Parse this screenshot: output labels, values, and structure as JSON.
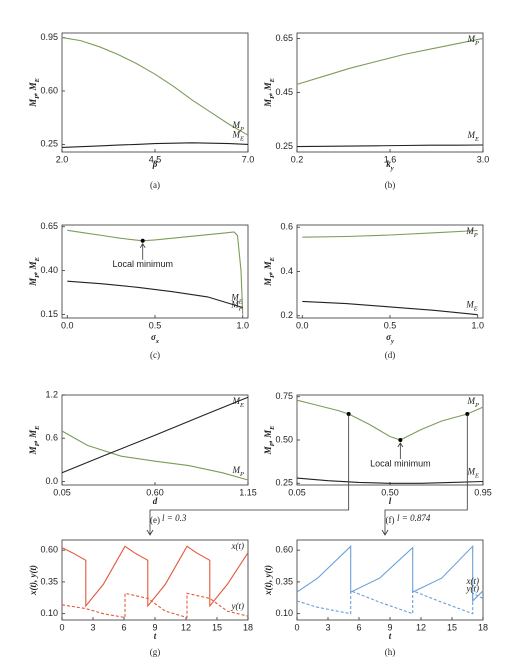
{
  "chart_data": [
    {
      "type": "line",
      "caption": "(a)",
      "xlabel": "β",
      "ylabel": "M_P, M_E",
      "xlim": [
        2,
        7
      ],
      "xticks": [
        {
          "value": 2,
          "label": "2.0"
        },
        4.5,
        {
          "value": 7,
          "label": "7.0"
        }
      ],
      "ylim": [
        0.2,
        0.98
      ],
      "yticks": [
        0.25,
        {
          "value": 0.6,
          "label": "0.60"
        },
        0.95
      ],
      "series": [
        {
          "name": "M_P",
          "color": "#7d9c5b",
          "x": [
            2,
            2.5,
            3,
            3.5,
            4,
            4.5,
            5,
            5.5,
            6,
            6.5,
            7
          ],
          "values": [
            0.95,
            0.93,
            0.89,
            0.84,
            0.78,
            0.71,
            0.63,
            0.54,
            0.46,
            0.38,
            0.31
          ]
        },
        {
          "name": "M_E",
          "color": "#222222",
          "x": [
            2,
            2.5,
            3,
            3.5,
            4,
            4.5,
            5,
            5.5,
            6,
            6.5,
            7
          ],
          "values": [
            0.23,
            0.235,
            0.24,
            0.245,
            0.25,
            0.255,
            0.258,
            0.26,
            0.258,
            0.255,
            0.25
          ]
        }
      ]
    },
    {
      "type": "line",
      "caption": "(b)",
      "xlabel": "k_y",
      "ylabel": "M_P, M_E",
      "xlim": [
        0.2,
        3
      ],
      "xticks": [
        0.2,
        1.6,
        {
          "value": 3,
          "label": "3.0"
        }
      ],
      "ylim": [
        0.23,
        0.67
      ],
      "yticks": [
        0.25,
        0.45,
        0.65
      ],
      "series": [
        {
          "name": "M_P",
          "color": "#7d9c5b",
          "x": [
            0.2,
            0.6,
            1,
            1.4,
            1.8,
            2.2,
            2.6,
            3
          ],
          "values": [
            0.48,
            0.51,
            0.54,
            0.565,
            0.59,
            0.61,
            0.63,
            0.65
          ]
        },
        {
          "name": "M_E",
          "color": "#222222",
          "x": [
            0.2,
            0.6,
            1,
            1.4,
            1.8,
            2.2,
            2.6,
            3
          ],
          "values": [
            0.25,
            0.251,
            0.252,
            0.253,
            0.254,
            0.255,
            0.255,
            0.256
          ]
        }
      ]
    },
    {
      "type": "line",
      "caption": "(c)",
      "xlabel": "σ_x",
      "ylabel": "M_P, M_E",
      "xlim": [
        -0.03,
        1.03
      ],
      "xticks": [
        {
          "value": 0,
          "label": "0.0"
        },
        0.5,
        {
          "value": 1,
          "label": "1.0"
        }
      ],
      "ylim": [
        0.13,
        0.66
      ],
      "yticks": [
        0.15,
        {
          "value": 0.4,
          "label": "0.40"
        },
        0.65
      ],
      "series": [
        {
          "name": "M_P",
          "color": "#7d9c5b",
          "x": [
            0,
            0.1,
            0.2,
            0.3,
            0.43,
            0.5,
            0.6,
            0.7,
            0.8,
            0.9,
            0.95,
            0.97,
            0.99,
            1
          ],
          "values": [
            0.63,
            0.615,
            0.6,
            0.585,
            0.57,
            0.575,
            0.585,
            0.595,
            0.605,
            0.615,
            0.62,
            0.6,
            0.4,
            0.15
          ]
        },
        {
          "name": "M_E",
          "color": "#222222",
          "x": [
            0,
            0.2,
            0.4,
            0.6,
            0.8,
            1
          ],
          "values": [
            0.34,
            0.325,
            0.305,
            0.28,
            0.25,
            0.19
          ]
        }
      ],
      "points": [
        {
          "x": 0.43,
          "y": 0.57,
          "label": "Local minimum"
        }
      ]
    },
    {
      "type": "line",
      "caption": "(d)",
      "xlabel": "σ_y",
      "ylabel": "M_P, M_E",
      "xlim": [
        -0.03,
        1.03
      ],
      "xticks": [
        {
          "value": 0,
          "label": "0.0"
        },
        0.5,
        {
          "value": 1,
          "label": "1.0"
        }
      ],
      "ylim": [
        0.19,
        0.61
      ],
      "yticks": [
        0.2,
        0.4,
        0.6
      ],
      "series": [
        {
          "name": "M_P",
          "color": "#7d9c5b",
          "x": [
            0,
            0.25,
            0.5,
            0.75,
            1
          ],
          "values": [
            0.555,
            0.558,
            0.565,
            0.575,
            0.585
          ]
        },
        {
          "name": "M_E",
          "color": "#222222",
          "x": [
            0,
            0.25,
            0.5,
            0.75,
            1
          ],
          "values": [
            0.265,
            0.255,
            0.24,
            0.225,
            0.205
          ]
        }
      ]
    },
    {
      "type": "line",
      "caption": "(e)",
      "xlabel": "d",
      "ylabel": "M_P, M_E",
      "xlim": [
        0.05,
        1.15
      ],
      "xticks": [
        0.05,
        {
          "value": 0.6,
          "label": "0.60"
        },
        1.15
      ],
      "ylim": [
        -0.05,
        1.2
      ],
      "yticks": [
        {
          "value": 0,
          "label": "0.0"
        },
        0.6,
        1.2
      ],
      "series": [
        {
          "name": "M_P",
          "color": "#7d9c5b",
          "x": [
            0.05,
            0.2,
            0.4,
            0.6,
            0.8,
            1,
            1.15
          ],
          "values": [
            0.7,
            0.5,
            0.35,
            0.28,
            0.22,
            0.12,
            0.02
          ]
        },
        {
          "name": "M_E",
          "color": "#222222",
          "x": [
            0.05,
            0.3,
            0.6,
            0.9,
            1.15
          ],
          "values": [
            0.12,
            0.36,
            0.64,
            0.93,
            1.17
          ]
        }
      ]
    },
    {
      "type": "line",
      "caption": "(f)",
      "xlabel": "l",
      "ylabel": "M_P, M_E",
      "xlim": [
        0.05,
        0.95
      ],
      "xticks": [
        0.05,
        {
          "value": 0.5,
          "label": "0.50"
        },
        0.95
      ],
      "ylim": [
        0.24,
        0.76
      ],
      "yticks": [
        0.25,
        {
          "value": 0.5,
          "label": "0.50"
        },
        0.75
      ],
      "series": [
        {
          "name": "M_P",
          "color": "#7d9c5b",
          "x": [
            0.05,
            0.15,
            0.25,
            0.3,
            0.4,
            0.5,
            0.55,
            0.65,
            0.75,
            0.874,
            0.95
          ],
          "values": [
            0.73,
            0.7,
            0.67,
            0.65,
            0.59,
            0.52,
            0.5,
            0.56,
            0.61,
            0.65,
            0.69
          ]
        },
        {
          "name": "M_E",
          "color": "#222222",
          "x": [
            0.05,
            0.2,
            0.35,
            0.5,
            0.65,
            0.8,
            0.95
          ],
          "values": [
            0.28,
            0.265,
            0.255,
            0.25,
            0.25,
            0.255,
            0.26
          ]
        }
      ],
      "points": [
        {
          "x": 0.55,
          "y": 0.5,
          "label": "Local minimum"
        },
        {
          "x": 0.3,
          "y": 0.65,
          "label": "l = 0.3",
          "drop": true
        },
        {
          "x": 0.874,
          "y": 0.65,
          "label": "l = 0.874",
          "drop": true
        }
      ]
    },
    {
      "type": "line",
      "caption": "(g)",
      "xlabel": "t",
      "ylabel": "x(t), y(t)",
      "xlim": [
        0,
        18
      ],
      "xticks": [
        0,
        3,
        6,
        9,
        12,
        15,
        18
      ],
      "ylim": [
        0.05,
        0.68
      ],
      "yticks": [
        {
          "value": 0.1,
          "label": "0.10"
        },
        0.35,
        {
          "value": 0.6,
          "label": "0.60"
        }
      ],
      "series": [
        {
          "name": "x(t)",
          "color": "#e4593a",
          "x": [
            0,
            1,
            2.3,
            2.3,
            4,
            6.1,
            6.1,
            7,
            8.3,
            8.3,
            10,
            12.1,
            12.1,
            13,
            14.3,
            14.3,
            16,
            18
          ],
          "values": [
            0.62,
            0.58,
            0.52,
            0.16,
            0.33,
            0.63,
            0.63,
            0.58,
            0.52,
            0.16,
            0.33,
            0.63,
            0.63,
            0.58,
            0.52,
            0.16,
            0.33,
            0.58
          ]
        },
        {
          "name": "y(t)",
          "color": "#e4593a",
          "dash": true,
          "x": [
            0,
            2.3,
            4,
            6.1,
            6.1,
            8.3,
            10,
            12.1,
            12.1,
            14.3,
            16,
            18
          ],
          "values": [
            0.17,
            0.14,
            0.1,
            0.07,
            0.26,
            0.22,
            0.12,
            0.07,
            0.26,
            0.22,
            0.12,
            0.08
          ]
        }
      ]
    },
    {
      "type": "line",
      "caption": "(h)",
      "xlabel": "t",
      "ylabel": "x(t), y(t)",
      "xlim": [
        0,
        18
      ],
      "xticks": [
        0,
        3,
        6,
        9,
        12,
        15,
        18
      ],
      "ylim": [
        0.05,
        0.68
      ],
      "yticks": [
        {
          "value": 0.1,
          "label": "0.10"
        },
        0.35,
        {
          "value": 0.6,
          "label": "0.60"
        }
      ],
      "series": [
        {
          "name": "x(t)",
          "color": "#6a9fd8",
          "x": [
            0,
            2,
            5.2,
            5.2,
            8,
            11.2,
            11.2,
            14,
            17,
            17,
            18
          ],
          "values": [
            0.27,
            0.38,
            0.63,
            0.27,
            0.38,
            0.62,
            0.27,
            0.38,
            0.63,
            0.2,
            0.28
          ]
        },
        {
          "name": "y(t)",
          "color": "#6a9fd8",
          "dash": true,
          "x": [
            0,
            2,
            5.2,
            5.2,
            8,
            11.2,
            11.2,
            14,
            17,
            17,
            18
          ],
          "values": [
            0.2,
            0.15,
            0.1,
            0.28,
            0.19,
            0.1,
            0.28,
            0.19,
            0.1,
            0.26,
            0.22
          ]
        }
      ]
    }
  ]
}
